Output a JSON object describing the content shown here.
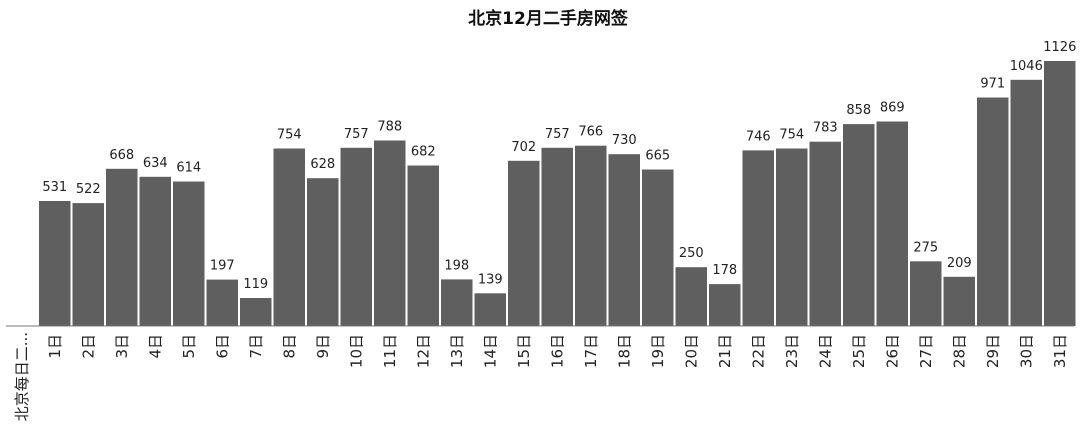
{
  "chart_data": {
    "type": "bar",
    "title": "北京12月二手房网签",
    "series_label": "北京每日二...",
    "categories": [
      "1日",
      "2日",
      "3日",
      "4日",
      "5日",
      "6日",
      "7日",
      "8日",
      "9日",
      "10日",
      "11日",
      "12日",
      "13日",
      "14日",
      "15日",
      "16日",
      "17日",
      "18日",
      "19日",
      "20日",
      "21日",
      "22日",
      "23日",
      "24日",
      "25日",
      "26日",
      "27日",
      "28日",
      "29日",
      "30日",
      "31日"
    ],
    "values": [
      531,
      522,
      668,
      634,
      614,
      197,
      119,
      754,
      628,
      757,
      788,
      682,
      198,
      139,
      702,
      757,
      766,
      730,
      665,
      250,
      178,
      746,
      754,
      783,
      858,
      869,
      275,
      209,
      971,
      1046,
      1126
    ],
    "ylim": [
      0,
      1126
    ],
    "bar_color": "#5f5f5f",
    "grid": false
  }
}
